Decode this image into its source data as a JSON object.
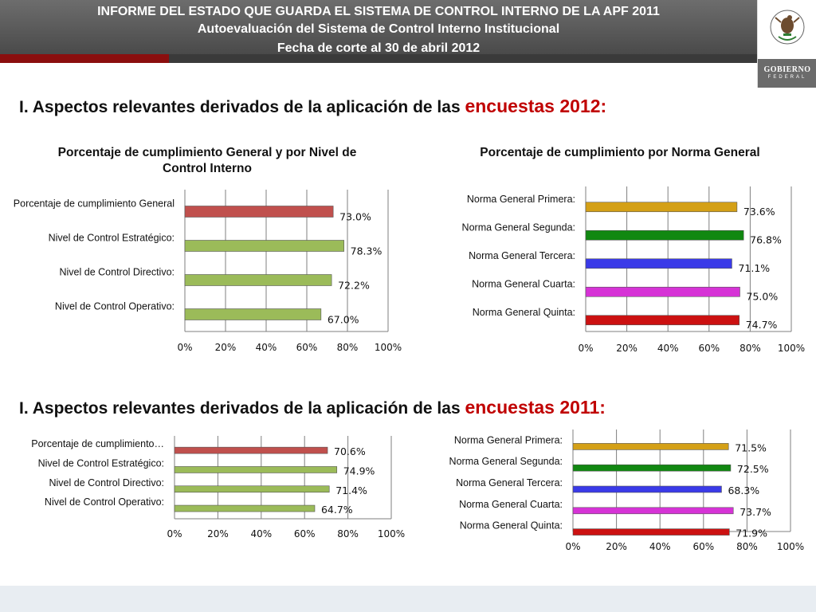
{
  "header": {
    "line1": "INFORME DEL ESTADO QUE GUARDA EL SISTEMA DE CONTROL INTERNO DE LA APF 2011",
    "line2": "Autoevaluación del Sistema de Control Interno Institucional",
    "line3": "Fecha de corte al 30 de abril 2012",
    "logo": {
      "seal_text": "ESTADOS UNIDOS MEXICANOS",
      "word1": "GOBIERNO",
      "word2": "FEDERAL",
      "icon": "mexican-coat-of-arms"
    }
  },
  "colors": {
    "header_bg": "#555555",
    "accent_red": "#c00000",
    "red_bar": "#c0504d",
    "green_bar": "#9bbb59"
  },
  "section_2012": {
    "prefix": "I. Aspectos relevantes derivados de la aplicación de las ",
    "highlight": "encuestas 2012:"
  },
  "section_2011": {
    "prefix": "I. Aspectos relevantes derivados de la aplicación de las ",
    "highlight": "encuestas 2011:"
  },
  "chart_data": [
    {
      "id": "general-2012",
      "type": "bar",
      "orientation": "horizontal",
      "title": "Porcentaje de cumplimiento General y por Nivel  de Control  Interno",
      "categories": [
        "Porcentaje de cumplimiento General",
        "Nivel de Control Estratégico:",
        "Nivel de Control Directivo:",
        "Nivel de Control Operativo:"
      ],
      "values": [
        73.0,
        78.3,
        72.2,
        67.0
      ],
      "value_labels": [
        "73.0%",
        "78.3%",
        "72.2%",
        "67.0%"
      ],
      "colors": [
        "#c0504d",
        "#9bbb59",
        "#9bbb59",
        "#9bbb59"
      ],
      "xticks": [
        "0%",
        "20%",
        "40%",
        "60%",
        "80%",
        "100%"
      ],
      "xlim": [
        0,
        100
      ],
      "grid": true
    },
    {
      "id": "norma-2012",
      "type": "bar",
      "orientation": "horizontal",
      "title": "Porcentaje de cumplimiento por Norma General",
      "categories": [
        "Norma General Primera:",
        "Norma General Segunda:",
        "Norma General Tercera:",
        "Norma General Cuarta:",
        "Norma General Quinta:"
      ],
      "values": [
        73.6,
        76.8,
        71.1,
        75.0,
        74.7
      ],
      "value_labels": [
        "73.6%",
        "76.8%",
        "71.1%",
        "75.0%",
        "74.7%"
      ],
      "colors": [
        "#d4a017",
        "#118811",
        "#3a3ae8",
        "#d633d6",
        "#cc1111"
      ],
      "xticks": [
        "0%",
        "20%",
        "40%",
        "60%",
        "80%",
        "100%"
      ],
      "xlim": [
        0,
        100
      ],
      "grid": true
    },
    {
      "id": "general-2011",
      "type": "bar",
      "orientation": "horizontal",
      "title": "",
      "categories": [
        "Porcentaje de cumplimiento…",
        "Nivel de Control Estratégico:",
        "Nivel de Control Directivo:",
        "Nivel de Control Operativo:"
      ],
      "values": [
        70.6,
        74.9,
        71.4,
        64.7
      ],
      "value_labels": [
        "70.6%",
        "74.9%",
        "71.4%",
        "64.7%"
      ],
      "colors": [
        "#c0504d",
        "#9bbb59",
        "#9bbb59",
        "#9bbb59"
      ],
      "xticks": [
        "0%",
        "20%",
        "40%",
        "60%",
        "80%",
        "100%"
      ],
      "xlim": [
        0,
        100
      ],
      "grid": true
    },
    {
      "id": "norma-2011",
      "type": "bar",
      "orientation": "horizontal",
      "title": "",
      "categories": [
        "Norma General Primera:",
        "Norma General Segunda:",
        "Norma General Tercera:",
        "Norma General Cuarta:",
        "Norma General Quinta:"
      ],
      "values": [
        71.5,
        72.5,
        68.3,
        73.7,
        71.9
      ],
      "value_labels": [
        "71.5%",
        "72.5%",
        "68.3%",
        "73.7%",
        "71.9%"
      ],
      "colors": [
        "#d4a017",
        "#118811",
        "#3a3ae8",
        "#d633d6",
        "#cc1111"
      ],
      "xticks": [
        "0%",
        "20%",
        "40%",
        "60%",
        "80%",
        "100%"
      ],
      "xlim": [
        0,
        100
      ],
      "grid": true
    }
  ]
}
